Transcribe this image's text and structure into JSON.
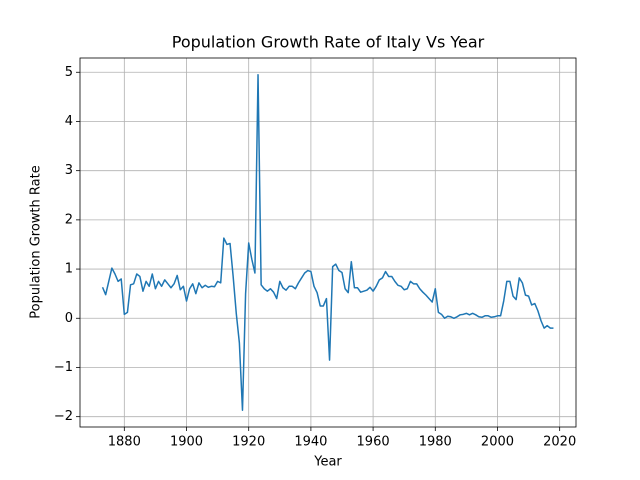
{
  "chart_data": {
    "type": "line",
    "title": "Population Growth Rate of Italy Vs Year",
    "x_label": "Year",
    "y_label": "Population Growth Rate",
    "color": "#1f77b4",
    "grid": true,
    "x": [
      1873,
      1874,
      1875,
      1876,
      1877,
      1878,
      1879,
      1880,
      1881,
      1882,
      1883,
      1884,
      1885,
      1886,
      1887,
      1888,
      1889,
      1890,
      1891,
      1892,
      1893,
      1894,
      1895,
      1896,
      1897,
      1898,
      1899,
      1900,
      1901,
      1902,
      1903,
      1904,
      1905,
      1906,
      1907,
      1908,
      1909,
      1910,
      1911,
      1912,
      1913,
      1914,
      1915,
      1916,
      1917,
      1918,
      1919,
      1920,
      1921,
      1922,
      1923,
      1924,
      1925,
      1926,
      1927,
      1928,
      1929,
      1930,
      1931,
      1932,
      1933,
      1934,
      1935,
      1936,
      1937,
      1938,
      1939,
      1940,
      1941,
      1942,
      1943,
      1944,
      1945,
      1946,
      1947,
      1948,
      1949,
      1950,
      1951,
      1952,
      1953,
      1954,
      1955,
      1956,
      1957,
      1958,
      1959,
      1960,
      1961,
      1962,
      1963,
      1964,
      1965,
      1966,
      1967,
      1968,
      1969,
      1970,
      1971,
      1972,
      1973,
      1974,
      1975,
      1976,
      1977,
      1978,
      1979,
      1980,
      1981,
      1982,
      1983,
      1984,
      1985,
      1986,
      1987,
      1988,
      1989,
      1990,
      1991,
      1992,
      1993,
      1994,
      1995,
      1996,
      1997,
      1998,
      1999,
      2000,
      2001,
      2002,
      2003,
      2004,
      2005,
      2006,
      2007,
      2008,
      2009,
      2010,
      2011,
      2012,
      2013,
      2014,
      2015,
      2016,
      2017,
      2018
    ],
    "values": [
      0.63,
      0.48,
      0.75,
      1.02,
      0.9,
      0.75,
      0.8,
      0.08,
      0.12,
      0.68,
      0.7,
      0.9,
      0.85,
      0.55,
      0.75,
      0.65,
      0.9,
      0.6,
      0.75,
      0.65,
      0.78,
      0.7,
      0.62,
      0.7,
      0.87,
      0.58,
      0.65,
      0.35,
      0.6,
      0.7,
      0.5,
      0.72,
      0.62,
      0.67,
      0.63,
      0.65,
      0.64,
      0.75,
      0.72,
      1.63,
      1.5,
      1.52,
      0.85,
      0.1,
      -0.5,
      -1.87,
      0.5,
      1.53,
      1.2,
      0.92,
      4.95,
      0.68,
      0.6,
      0.55,
      0.6,
      0.53,
      0.4,
      0.75,
      0.62,
      0.57,
      0.65,
      0.65,
      0.6,
      0.72,
      0.82,
      0.92,
      0.97,
      0.95,
      0.65,
      0.52,
      0.25,
      0.25,
      0.4,
      -0.85,
      1.05,
      1.1,
      0.97,
      0.93,
      0.6,
      0.52,
      1.15,
      0.62,
      0.62,
      0.53,
      0.55,
      0.57,
      0.63,
      0.55,
      0.65,
      0.78,
      0.82,
      0.95,
      0.85,
      0.85,
      0.75,
      0.67,
      0.65,
      0.58,
      0.6,
      0.75,
      0.7,
      0.7,
      0.6,
      0.53,
      0.47,
      0.4,
      0.33,
      0.6,
      0.12,
      0.08,
      0.0,
      0.04,
      0.03,
      0.0,
      0.03,
      0.07,
      0.08,
      0.1,
      0.07,
      0.1,
      0.07,
      0.03,
      0.02,
      0.05,
      0.05,
      0.02,
      0.03,
      0.05,
      0.05,
      0.35,
      0.75,
      0.75,
      0.45,
      0.38,
      0.82,
      0.72,
      0.47,
      0.45,
      0.27,
      0.3,
      0.15,
      -0.05,
      -0.2,
      -0.15,
      -0.2,
      -0.2
    ],
    "xlim": [
      1865.75,
      2025.25
    ],
    "xticks": [
      1880,
      1900,
      1920,
      1940,
      1960,
      1980,
      2000,
      2020
    ],
    "ylim": [
      -2.21,
      5.29
    ],
    "yticks": [
      {
        "value": -2,
        "label": "−2"
      },
      {
        "value": -1,
        "label": "−1"
      },
      0,
      1,
      2,
      3,
      4,
      5
    ]
  }
}
